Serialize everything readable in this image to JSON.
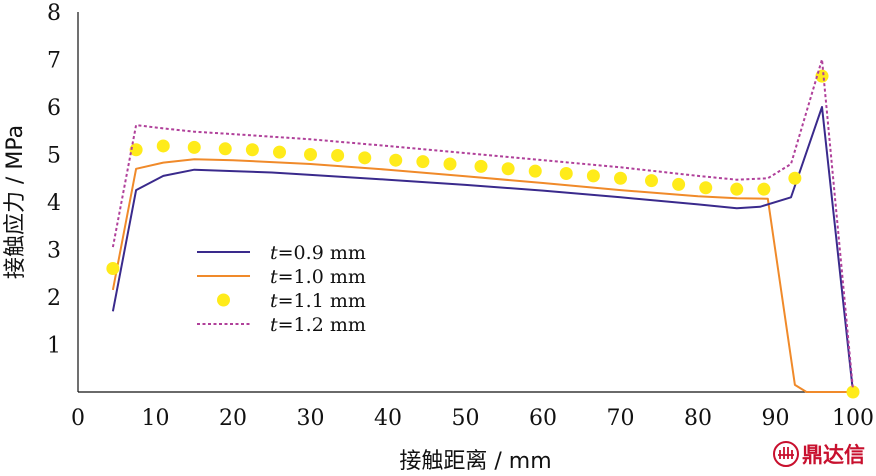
{
  "chart_data": {
    "type": "line",
    "title": "",
    "xlabel": "接触距离 / mm",
    "ylabel": "接触应力 / MPa",
    "xlim": [
      0,
      100
    ],
    "ylim": [
      0,
      8
    ],
    "xticks": [
      0,
      10,
      20,
      30,
      40,
      50,
      60,
      70,
      80,
      90,
      100
    ],
    "yticks": [
      1,
      2,
      3,
      4,
      5,
      6,
      7,
      8
    ],
    "grid": false,
    "legend_position": "left-center",
    "series": [
      {
        "name_var": "t",
        "name_rest": "=0.9 mm",
        "style": "solid",
        "color": "#3a2a8c",
        "x": [
          4.5,
          7.5,
          11,
          15,
          20,
          25,
          30,
          40,
          50,
          60,
          70,
          80,
          85,
          88,
          92,
          96,
          100
        ],
        "y": [
          1.7,
          4.25,
          4.55,
          4.68,
          4.65,
          4.62,
          4.57,
          4.47,
          4.36,
          4.24,
          4.1,
          3.95,
          3.87,
          3.9,
          4.1,
          6.0,
          0.0
        ]
      },
      {
        "name_var": "t",
        "name_rest": "=1.0 mm",
        "style": "solid",
        "color": "#f08a2a",
        "x": [
          4.5,
          7.5,
          11,
          15,
          20,
          30,
          40,
          50,
          60,
          70,
          80,
          85,
          89,
          92.5,
          94,
          100
        ],
        "y": [
          2.15,
          4.7,
          4.83,
          4.9,
          4.88,
          4.8,
          4.68,
          4.54,
          4.4,
          4.25,
          4.12,
          4.08,
          4.07,
          0.15,
          0.0,
          0.0
        ]
      },
      {
        "name_var": "t",
        "name_rest": "=1.1 mm",
        "style": "markers",
        "color": "#ffeb1a",
        "x": [
          4.5,
          7.5,
          11,
          15,
          19,
          22.5,
          26,
          30,
          33.5,
          37,
          41,
          44.5,
          48,
          52,
          55.5,
          59,
          63,
          66.5,
          70,
          74,
          77.5,
          81,
          85,
          88.5,
          92.5,
          96,
          100
        ],
        "y": [
          2.6,
          5.1,
          5.18,
          5.15,
          5.12,
          5.1,
          5.05,
          5.0,
          4.98,
          4.93,
          4.88,
          4.85,
          4.8,
          4.75,
          4.7,
          4.65,
          4.6,
          4.55,
          4.5,
          4.45,
          4.37,
          4.3,
          4.27,
          4.27,
          4.5,
          6.65,
          0.0
        ]
      },
      {
        "name_var": "t",
        "name_rest": "=1.2 mm",
        "style": "dashed",
        "color": "#b0409a",
        "x": [
          4.5,
          7.5,
          11,
          15,
          20,
          30,
          40,
          50,
          60,
          70,
          80,
          85,
          89,
          92,
          96,
          100
        ],
        "y": [
          3.05,
          5.62,
          5.55,
          5.48,
          5.43,
          5.32,
          5.18,
          5.03,
          4.88,
          4.73,
          4.55,
          4.47,
          4.5,
          4.8,
          7.0,
          0.05
        ]
      }
    ]
  },
  "watermark": {
    "text": "鼎达信",
    "icon": "dingdaxin-logo-icon",
    "color": "#c8102e"
  }
}
